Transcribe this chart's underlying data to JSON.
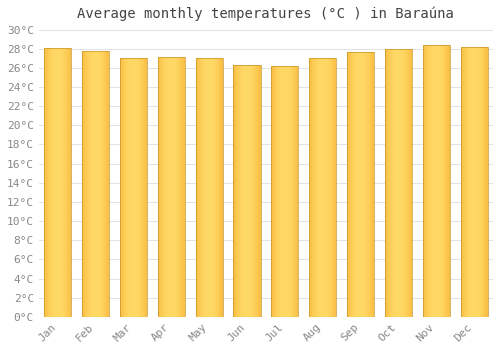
{
  "title": "Average monthly temperatures (°C ) in Baraúna",
  "months": [
    "Jan",
    "Feb",
    "Mar",
    "Apr",
    "May",
    "Jun",
    "Jul",
    "Aug",
    "Sep",
    "Oct",
    "Nov",
    "Dec"
  ],
  "values": [
    28.1,
    27.8,
    27.0,
    27.1,
    27.0,
    26.3,
    26.2,
    27.0,
    27.7,
    28.0,
    28.4,
    28.2
  ],
  "bar_color_center": "#FFD966",
  "bar_color_edge": "#F5A623",
  "bar_border_color": "#C8922A",
  "ylim": [
    0,
    30
  ],
  "ytick_step": 2,
  "background_color": "#ffffff",
  "grid_color": "#dddddd",
  "title_fontsize": 10,
  "tick_fontsize": 8,
  "font_color": "#888888"
}
